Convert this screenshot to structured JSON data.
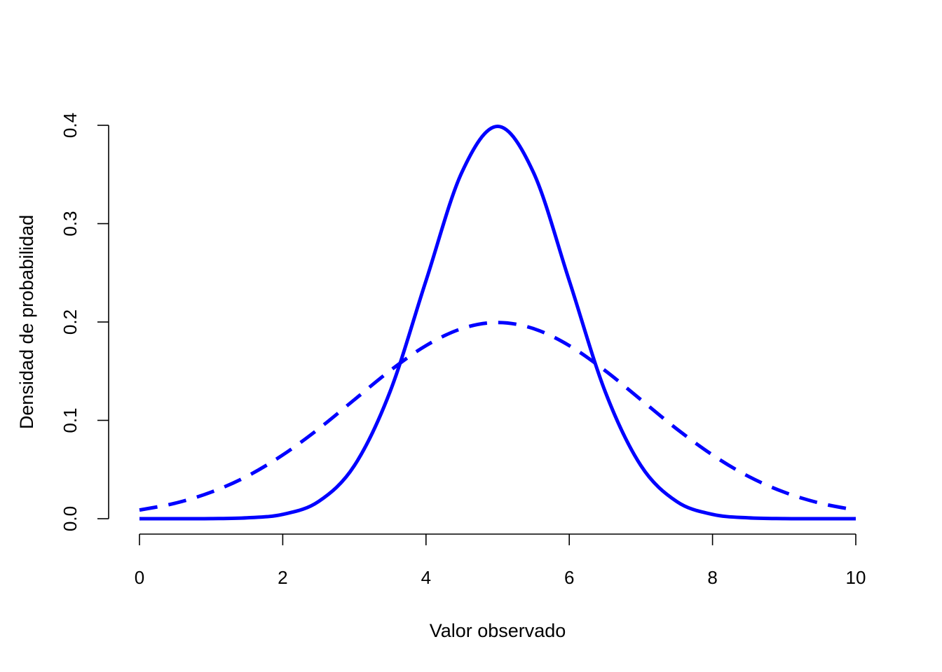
{
  "chart_data": {
    "type": "line",
    "title": "",
    "xlabel": "Valor observado",
    "ylabel": "Densidad de probabilidad",
    "xlim": [
      0,
      10
    ],
    "ylim": [
      0,
      0.4
    ],
    "x_ticks": [
      "0",
      "2",
      "4",
      "6",
      "8",
      "10"
    ],
    "y_ticks": [
      "0.0",
      "0.1",
      "0.2",
      "0.3",
      "0.4"
    ],
    "grid": false,
    "legend": "none",
    "series": [
      {
        "color": "#0000ff",
        "dash": "solid",
        "x": [
          0,
          0.5,
          1,
          1.5,
          2,
          2.5,
          3,
          3.5,
          4,
          4.5,
          5,
          5.5,
          6,
          6.5,
          7,
          7.5,
          8,
          8.5,
          9,
          9.5,
          10
        ],
        "y": [
          0.0,
          0.0,
          0.0001,
          0.0009,
          0.0044,
          0.0175,
          0.054,
          0.1295,
          0.242,
          0.3521,
          0.3989,
          0.3521,
          0.242,
          0.1295,
          0.054,
          0.0175,
          0.0044,
          0.0009,
          0.0001,
          0.0,
          0.0
        ]
      },
      {
        "color": "#0000ff",
        "dash": "dashed",
        "x": [
          0,
          0.5,
          1,
          1.5,
          2,
          2.5,
          3,
          3.5,
          4,
          4.5,
          5,
          5.5,
          6,
          6.5,
          7,
          7.5,
          8,
          8.5,
          9,
          9.5,
          10
        ],
        "y": [
          0.0088,
          0.0158,
          0.027,
          0.0431,
          0.0648,
          0.0913,
          0.121,
          0.1506,
          0.176,
          0.1933,
          0.1995,
          0.1933,
          0.176,
          0.1506,
          0.121,
          0.0913,
          0.0648,
          0.0431,
          0.027,
          0.0158,
          0.0088
        ]
      }
    ]
  }
}
